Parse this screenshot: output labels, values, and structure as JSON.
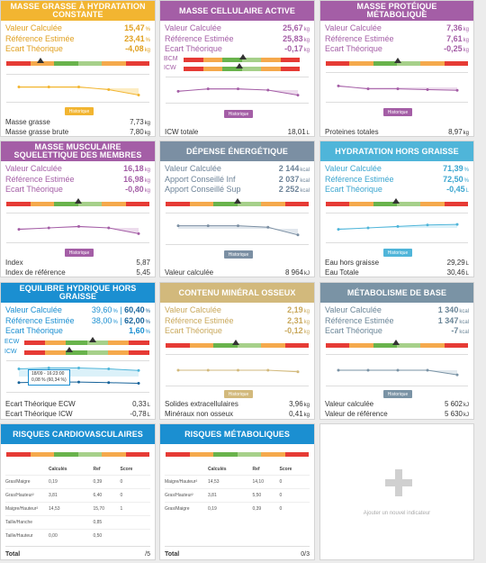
{
  "colors": {
    "orange": "#f2b531",
    "purple": "#a45ea6",
    "gray": "#7b8fa3",
    "cyan": "#4fb5d9",
    "blue": "#1b8fd1",
    "tan": "#d2b97c",
    "slate": "#7a93a5",
    "gauge_red": "#e63b35",
    "gauge_orange": "#f5a94c",
    "gauge_green": "#69b34c",
    "gauge_lgreen": "#a6d08a"
  },
  "historique_label": "Historique",
  "cards": {
    "masse_grasse": {
      "title": "MASSE GRASSE À HYDRATATION CONSTANTE",
      "rows": [
        {
          "label": "Valeur Calculée",
          "value": "15,47",
          "unit": "%"
        },
        {
          "label": "Référence Estimée",
          "value": "23,41",
          "unit": "%"
        },
        {
          "label": "Ecart Théorique",
          "value": "-4,08",
          "unit": "kg"
        }
      ],
      "series": [
        0.55,
        0.55,
        0.55,
        0.45,
        0.25
      ],
      "footer": [
        {
          "label": "Masse grasse",
          "value": "7,73",
          "unit": "kg"
        },
        {
          "label": "Masse grasse brute",
          "value": "7,80",
          "unit": "kg"
        }
      ]
    },
    "masse_cellulaire": {
      "title": "MASSE CELLULAIRE ACTIVE",
      "rows": [
        {
          "label": "Valeur Calculée",
          "value": "25,67",
          "unit": "kg"
        },
        {
          "label": "Référence Estimée",
          "value": "25,83",
          "unit": "kg"
        },
        {
          "label": "Ecart Théorique",
          "value": "-0,17",
          "unit": "kg"
        }
      ],
      "bcm_label": "BCM",
      "icw_label": "ICW",
      "series": [
        0.45,
        0.55,
        0.55,
        0.5,
        0.3
      ],
      "footer": [
        {
          "label": "ICW totale",
          "value": "18,01",
          "unit": "L"
        }
      ]
    },
    "masse_proteique": {
      "title": "MASSE PROTÉIQUE MÉTABOLIQUE",
      "rows": [
        {
          "label": "Valeur Calculée",
          "value": "7,36",
          "unit": "kg"
        },
        {
          "label": "Référence Estimée",
          "value": "7,61",
          "unit": "kg"
        },
        {
          "label": "Ecart Théorique",
          "value": "-0,25",
          "unit": "kg"
        }
      ],
      "series": [
        0.55,
        0.45,
        0.45,
        0.42,
        0.4
      ],
      "footer": [
        {
          "label": "Proteines totales",
          "value": "8,97",
          "unit": "kg"
        }
      ]
    },
    "masse_musculaire": {
      "title": "MASSE MUSCULAIRE SQUELETTIQUE DES MEMBRES",
      "rows": [
        {
          "label": "Valeur Calculée",
          "value": "16,18",
          "unit": "kg"
        },
        {
          "label": "Référence Estimée",
          "value": "16,98",
          "unit": "kg"
        },
        {
          "label": "Ecart Théorique",
          "value": "-0,80",
          "unit": "kg"
        }
      ],
      "series": [
        0.45,
        0.5,
        0.55,
        0.5,
        0.3
      ],
      "footer": [
        {
          "label": "Index",
          "value": "5,87",
          "unit": ""
        },
        {
          "label": "Index de référence",
          "value": "5,45",
          "unit": ""
        }
      ]
    },
    "depense": {
      "title": "DÉPENSE ÉNERGÉTIQUE",
      "rows": [
        {
          "label": "Valeur Calculée",
          "value": "2 144",
          "unit": "kcal"
        },
        {
          "label": "Apport Conseillé Inf",
          "value": "2 037",
          "unit": "kcal"
        },
        {
          "label": "Apport Conseillé Sup",
          "value": "2 252",
          "unit": "kcal"
        }
      ],
      "series": [
        0.6,
        0.6,
        0.6,
        0.55,
        0.3
      ],
      "footer": [
        {
          "label": "Valeur calculée",
          "value": "8 964",
          "unit": "kJ"
        }
      ]
    },
    "hydratation": {
      "title": "HYDRATATION HORS GRAISSE",
      "rows": [
        {
          "label": "Valeur Calculée",
          "value": "71,39",
          "unit": "%"
        },
        {
          "label": "Référence Estimée",
          "value": "72,50",
          "unit": "%"
        },
        {
          "label": "Ecart Théorique",
          "value": "-0,45",
          "unit": "L"
        }
      ],
      "series": [
        0.45,
        0.5,
        0.55,
        0.6,
        0.62
      ],
      "footer": [
        {
          "label": "Eau hors graisse",
          "value": "29,29",
          "unit": "L"
        },
        {
          "label": "Eau Totale",
          "value": "30,46",
          "unit": "L"
        }
      ]
    },
    "equilibre": {
      "title": "EQUILIBRE HYDRIQUE HORS GRAISSE",
      "rows": [
        {
          "label": "Valeur Calculée",
          "value": "39,60",
          "unit": "%",
          "value2": "60,40",
          "unit2": "%"
        },
        {
          "label": "Référence Estimée",
          "value": "38,00",
          "unit": "%",
          "value2": "62,00",
          "unit2": "%"
        },
        {
          "label": "Ecart Théorique",
          "value": "1,60",
          "unit": "%"
        }
      ],
      "ecw_label": "ECW",
      "icw_label": "ICW",
      "tooltip_date": "18/09 - 16:23:00",
      "tooltip_value": "0,08 % (60,34 %)",
      "series": [
        0.75,
        0.78,
        0.78,
        0.75,
        0.7
      ],
      "series2": [
        0.3,
        0.32,
        0.32,
        0.3,
        0.28
      ],
      "footer": [
        {
          "label": "Ecart Théorique ECW",
          "value": "0,33",
          "unit": "L"
        },
        {
          "label": "Ecart Théorique ICW",
          "value": "-0,78",
          "unit": "L"
        }
      ]
    },
    "mineral": {
      "title": "CONTENU MINÉRAL OSSEUX",
      "rows": [
        {
          "label": "Valeur Calculée",
          "value": "2,19",
          "unit": "kg"
        },
        {
          "label": "Référence Estimée",
          "value": "2,31",
          "unit": "kg"
        },
        {
          "label": "Ecart Théorique",
          "value": "-0,12",
          "unit": "kg"
        }
      ],
      "series": [
        0.5,
        0.5,
        0.5,
        0.5,
        0.45
      ],
      "footer": [
        {
          "label": "Solides extracellulaires",
          "value": "3,96",
          "unit": "kg"
        },
        {
          "label": "Minéraux non osseux",
          "value": "0,41",
          "unit": "kg"
        }
      ]
    },
    "metabolisme": {
      "title": "MÉTABOLISME DE BASE",
      "rows": [
        {
          "label": "Valeur Calculée",
          "value": "1 340",
          "unit": "kcal"
        },
        {
          "label": "Référence Estimée",
          "value": "1 347",
          "unit": "kcal"
        },
        {
          "label": "Ecart Théorique",
          "value": "-7",
          "unit": "kcal"
        }
      ],
      "series": [
        0.5,
        0.5,
        0.5,
        0.5,
        0.35
      ],
      "footer": [
        {
          "label": "Valeur calculée",
          "value": "5 602",
          "unit": "kJ"
        },
        {
          "label": "Valeur de référence",
          "value": "5 630",
          "unit": "kJ"
        }
      ]
    },
    "risques_cardio": {
      "title": "RISQUES CARDIOVASCULAIRES",
      "columns": [
        "",
        "Calculés",
        "Ref",
        "Score"
      ],
      "rows": [
        [
          "Gras/Maigre",
          "0,19",
          "0,39",
          "0"
        ],
        [
          "Gras/Hauteur²",
          "3,81",
          "6,40",
          "0"
        ],
        [
          "Maigre/Hauteur²",
          "14,53",
          "15,70",
          "1"
        ],
        [
          "Taille/Hanche",
          "",
          "0,85",
          ""
        ],
        [
          "Taille/Hauteur",
          "0,00",
          "0,50",
          ""
        ]
      ],
      "total_label": "Total",
      "total_value": "/5"
    },
    "risques_meta": {
      "title": "RISQUES MÉTABOLIQUES",
      "columns": [
        "",
        "Calculés",
        "Ref",
        "Score"
      ],
      "rows": [
        [
          "Maigre/Hauteur²",
          "14,53",
          "14,10",
          "0"
        ],
        [
          "Gras/Hauteur²",
          "3,81",
          "5,50",
          "0"
        ],
        [
          "Gras/Maigre",
          "0,19",
          "0,39",
          "0"
        ]
      ],
      "total_label": "Total",
      "total_value": "0/3"
    },
    "add": {
      "label": "Ajouter un nouvel indicateur"
    }
  }
}
